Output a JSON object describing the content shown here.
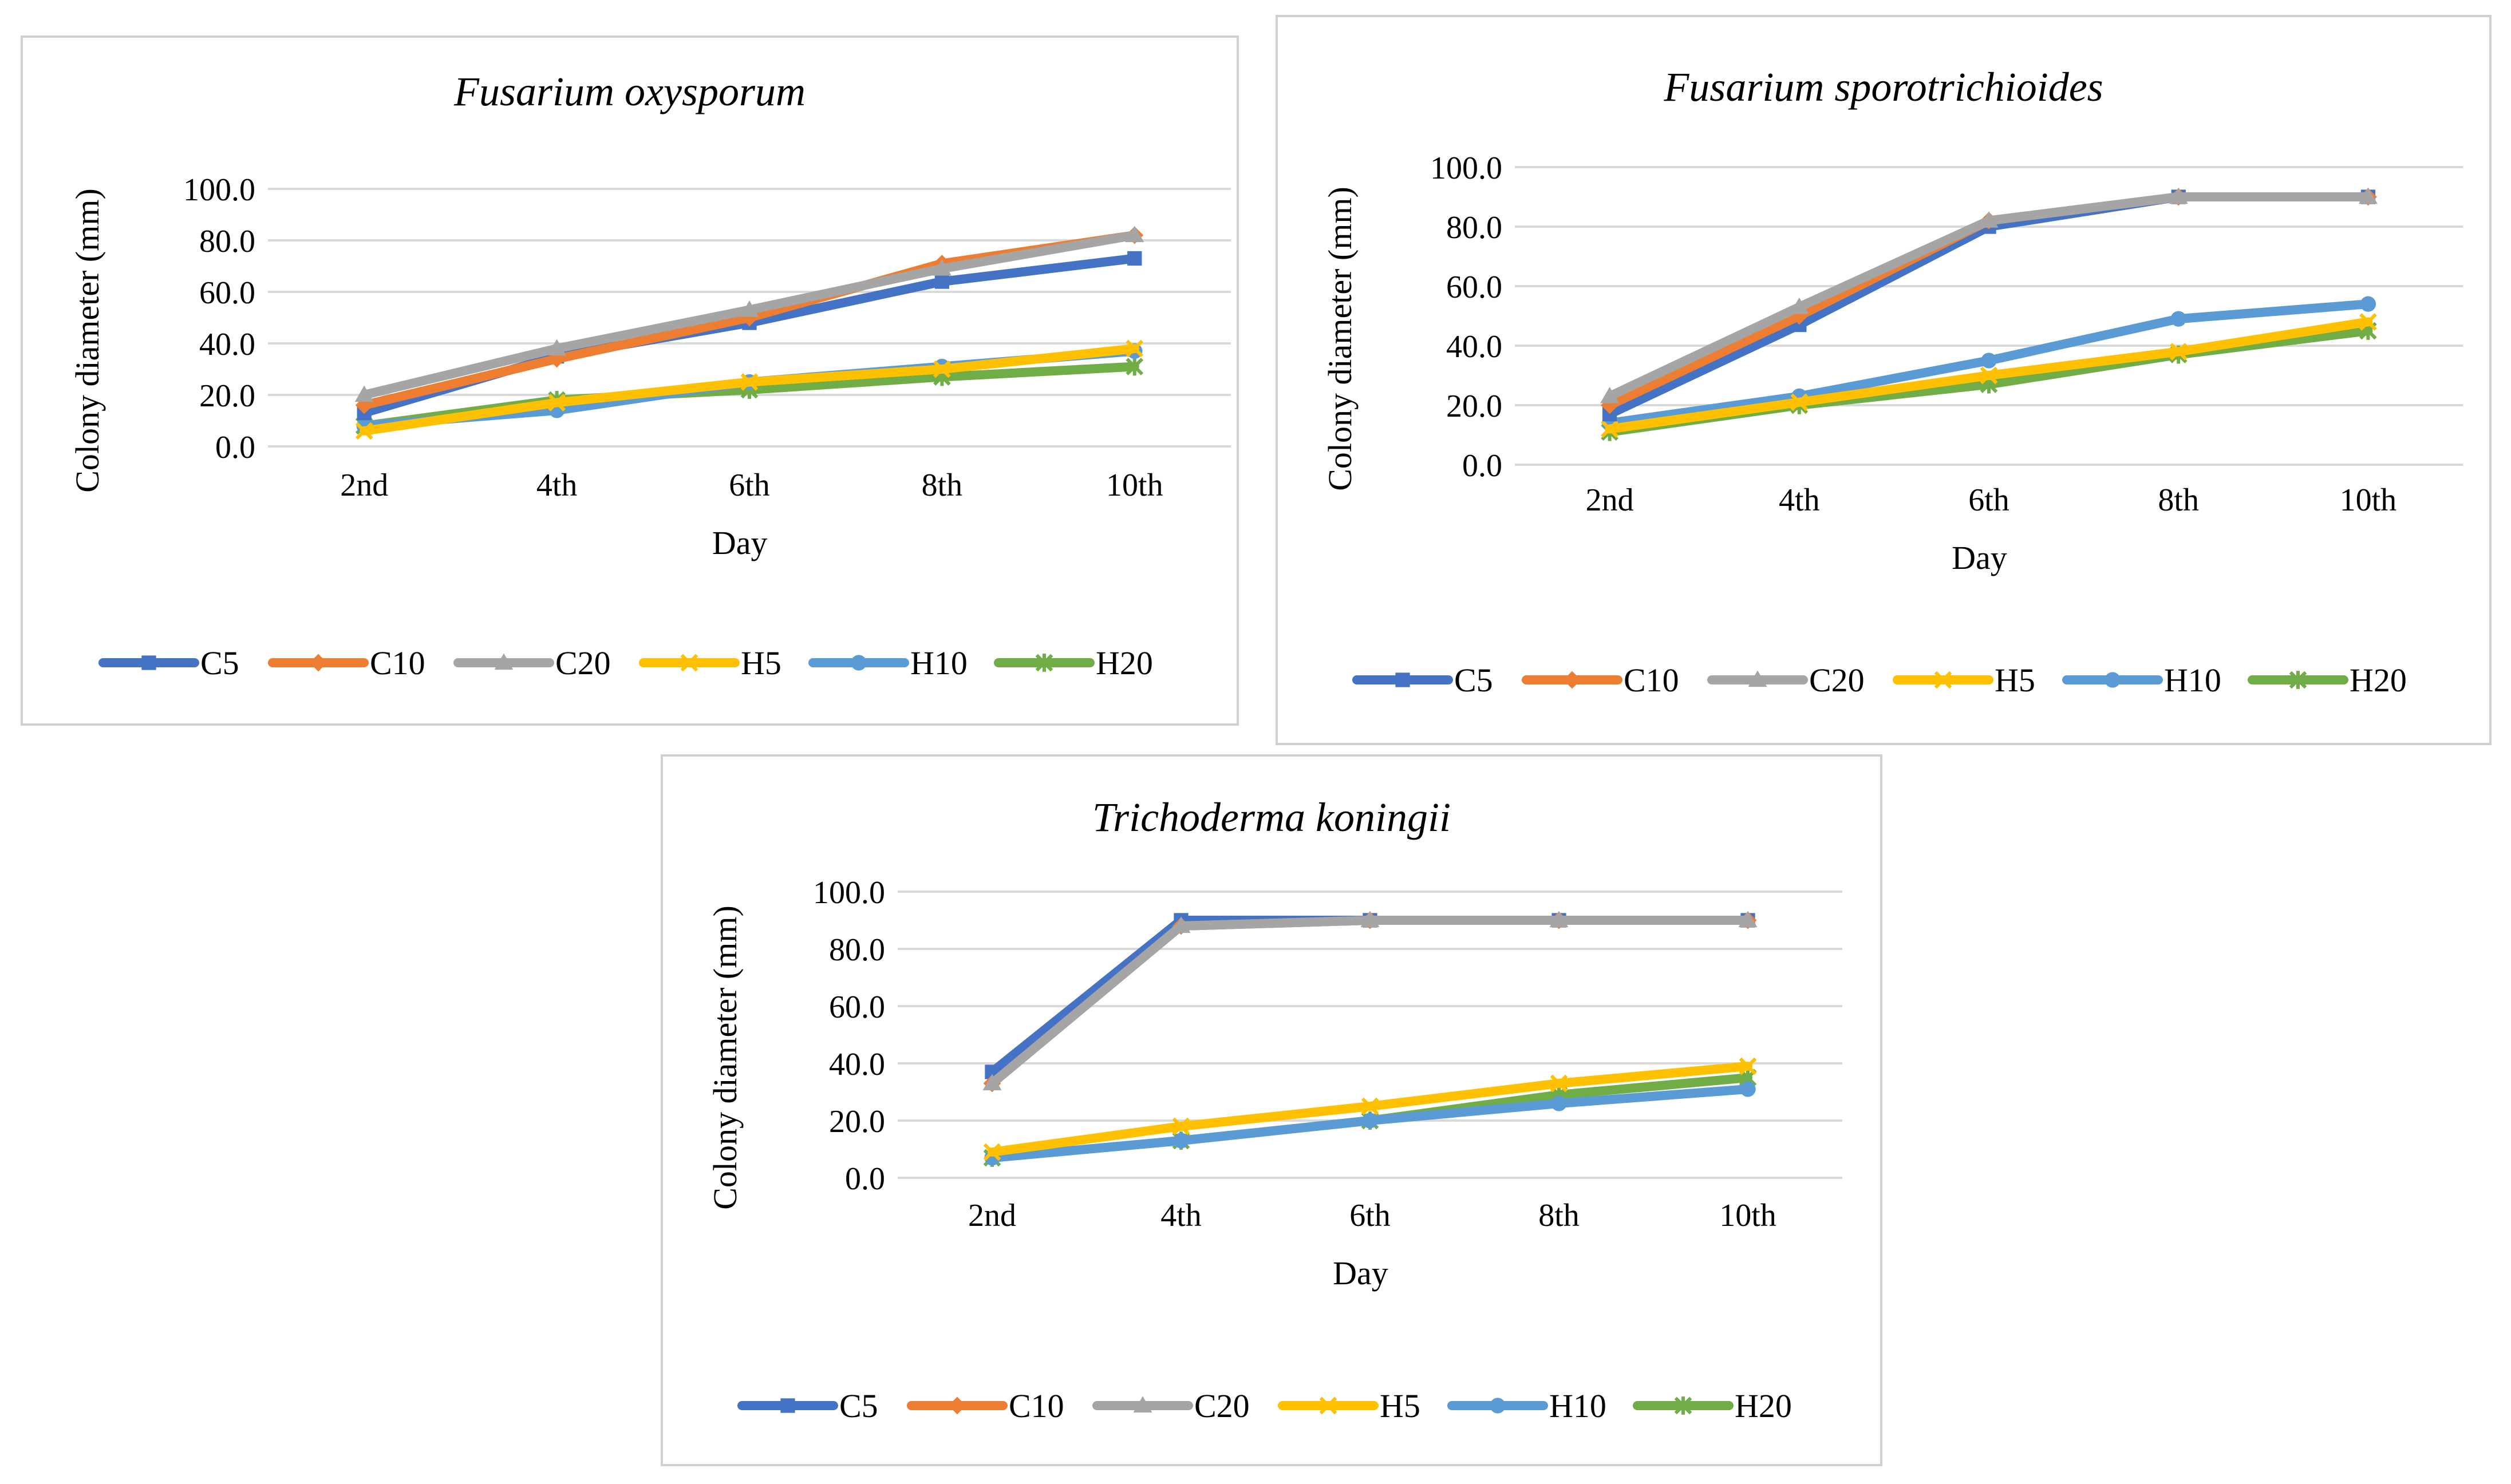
{
  "legend_colors": {
    "C5": "#4472C4",
    "C10": "#ED7D31",
    "C20": "#A5A5A5",
    "H5": "#FFC000",
    "H10": "#5B9BD5",
    "H20": "#70AD47"
  },
  "legend_markers": {
    "C5": "square",
    "C10": "diamond",
    "C20": "triangle",
    "H5": "x",
    "H10": "circle",
    "H20": "star"
  },
  "chart_data": [
    {
      "type": "line",
      "title": "Fusarium oxysporum",
      "xlabel": "Day",
      "ylabel": "Colony diameter (mm)",
      "categories": [
        "2nd",
        "4th",
        "6th",
        "8th",
        "10th"
      ],
      "ylim": [
        0,
        100
      ],
      "yticks": [
        "0.0",
        "20.0",
        "40.0",
        "60.0",
        "80.0",
        "100.0"
      ],
      "grid": true,
      "legend_position": "bottom",
      "series": [
        {
          "name": "C5",
          "values": [
            13.0,
            35.0,
            48.0,
            64.0,
            73.0
          ]
        },
        {
          "name": "C10",
          "values": [
            16.0,
            34.0,
            50.0,
            71.0,
            82.0
          ]
        },
        {
          "name": "C20",
          "values": [
            20.0,
            38.0,
            53.0,
            69.0,
            82.0
          ]
        },
        {
          "name": "H5",
          "values": [
            6.0,
            17.0,
            25.0,
            30.0,
            38.0
          ]
        },
        {
          "name": "H10",
          "values": [
            8.0,
            14.0,
            25.0,
            31.0,
            37.0
          ]
        },
        {
          "name": "H20",
          "values": [
            8.0,
            18.0,
            22.0,
            27.0,
            31.0
          ]
        }
      ]
    },
    {
      "type": "line",
      "title": "Fusarium sporotrichioides",
      "xlabel": "Day",
      "ylabel": "Colony diameter (mm)",
      "categories": [
        "2nd",
        "4th",
        "6th",
        "8th",
        "10th"
      ],
      "ylim": [
        0,
        100
      ],
      "yticks": [
        "0.0",
        "20.0",
        "40.0",
        "60.0",
        "80.0",
        "100.0"
      ],
      "grid": true,
      "legend_position": "bottom",
      "series": [
        {
          "name": "C5",
          "values": [
            17.0,
            47.0,
            80.0,
            90.0,
            90.0
          ]
        },
        {
          "name": "C10",
          "values": [
            20.0,
            50.0,
            82.0,
            90.0,
            90.0
          ]
        },
        {
          "name": "C20",
          "values": [
            23.0,
            53.0,
            82.0,
            90.0,
            90.0
          ]
        },
        {
          "name": "H5",
          "values": [
            12.0,
            21.0,
            30.0,
            38.0,
            48.0
          ]
        },
        {
          "name": "H10",
          "values": [
            14.0,
            23.0,
            35.0,
            49.0,
            54.0
          ]
        },
        {
          "name": "H20",
          "values": [
            11.0,
            20.0,
            27.0,
            37.0,
            45.0
          ]
        }
      ]
    },
    {
      "type": "line",
      "title": "Trichoderma koningii",
      "xlabel": "Day",
      "ylabel": "Colony diameter (mm)",
      "categories": [
        "2nd",
        "4th",
        "6th",
        "8th",
        "10th"
      ],
      "ylim": [
        0,
        100
      ],
      "yticks": [
        "0.0",
        "20.0",
        "40.0",
        "60.0",
        "80.0",
        "100.0"
      ],
      "grid": true,
      "legend_position": "bottom",
      "series": [
        {
          "name": "C5",
          "values": [
            37.0,
            90.0,
            90.0,
            90.0,
            90.0
          ]
        },
        {
          "name": "C10",
          "values": [
            33.0,
            88.0,
            90.0,
            90.0,
            90.0
          ]
        },
        {
          "name": "C20",
          "values": [
            33.0,
            88.0,
            90.0,
            90.0,
            90.0
          ]
        },
        {
          "name": "H5",
          "values": [
            9.0,
            18.0,
            25.0,
            33.0,
            39.0
          ]
        },
        {
          "name": "H10",
          "values": [
            7.0,
            13.0,
            20.0,
            26.0,
            31.0
          ]
        },
        {
          "name": "H20",
          "values": [
            7.0,
            13.0,
            20.0,
            29.0,
            35.0
          ]
        }
      ]
    }
  ]
}
